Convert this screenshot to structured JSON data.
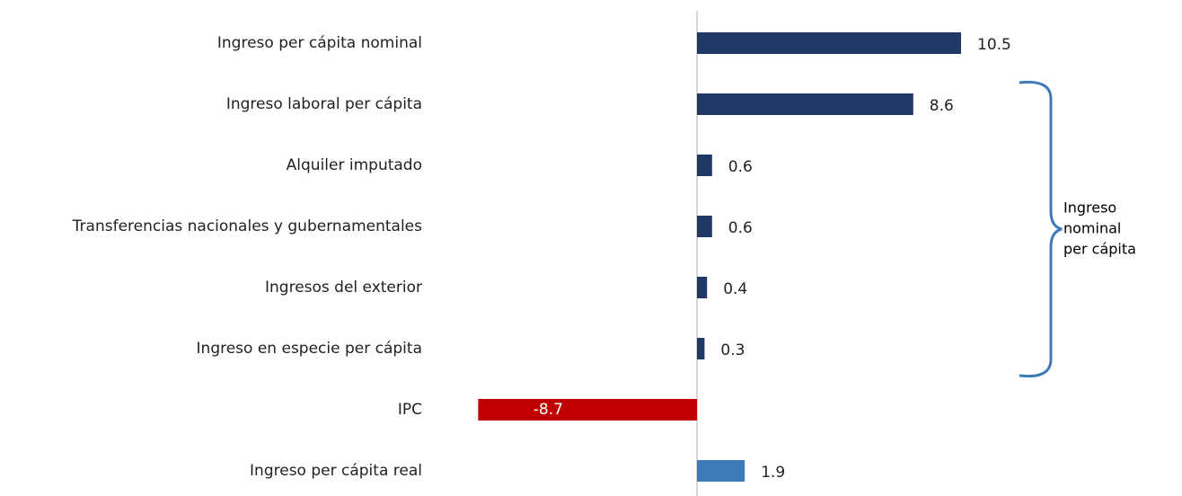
{
  "chart_data": {
    "type": "barh",
    "categories": [
      "Ingreso per cápita nominal",
      "Ingreso laboral per cápita",
      "Alquiler imputado",
      "Transferencias nacionales y gubernamentales",
      "Ingresos del exterior",
      "Ingreso en especie per cápita",
      "IPC",
      "Ingreso per cápita real"
    ],
    "values": [
      10.5,
      8.6,
      0.6,
      0.6,
      0.4,
      0.3,
      -8.7,
      1.9
    ],
    "colors": [
      "#1f3864",
      "#1f3864",
      "#1f3864",
      "#1f3864",
      "#1f3864",
      "#1f3864",
      "#c00000",
      "#3d7ab8"
    ],
    "xlim": [
      -10,
      12
    ],
    "annotation": [
      "Ingreso",
      "nominal",
      "per cápita"
    ]
  }
}
